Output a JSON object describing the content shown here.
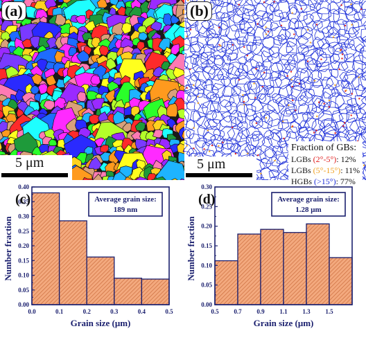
{
  "panels": {
    "a": {
      "letter": "(a)",
      "scalebar": "5 μm"
    },
    "b": {
      "letter": "(b)",
      "scalebar": "5 μm",
      "legend": {
        "title": "Fraction of GBs:",
        "rows": [
          {
            "name": "LGBs",
            "range": "(2°-5°)",
            "value": ": 12%",
            "color": "#e02020"
          },
          {
            "name": "LGBs",
            "range": "(5°-15°)",
            "value": ": 11%",
            "color": "#f0a020"
          },
          {
            "name": "HGBs",
            "range": "(>15°)",
            "value": ": 77%",
            "color": "#1d2fd8"
          }
        ]
      }
    }
  },
  "chart_data": [
    {
      "letter": "(c)",
      "type": "bar",
      "xlabel": "Grain size (μm)",
      "ylabel": "Number fraction",
      "bin_edges": [
        0.0,
        0.1,
        0.2,
        0.3,
        0.4,
        0.5
      ],
      "values": [
        0.38,
        0.285,
        0.162,
        0.09,
        0.087
      ],
      "xticks": [
        "0.0",
        "0.1",
        "0.2",
        "0.3",
        "0.4",
        "0.5"
      ],
      "ylim": [
        0.0,
        0.4
      ],
      "yticks": [
        "0.00",
        "0.05",
        "0.10",
        "0.15",
        "0.20",
        "0.25",
        "0.30",
        "0.35",
        "0.40"
      ],
      "annotation": [
        "Average grain size:",
        "189 nm"
      ],
      "bar_fill": "#f3a97e",
      "bar_hatch": "#c96a3a",
      "axis_color": "#1a1f6e"
    },
    {
      "letter": "(d)",
      "type": "bar",
      "xlabel": "Grain size (μm)",
      "ylabel": "Number fraction",
      "bin_edges": [
        0.5,
        0.7,
        0.9,
        1.1,
        1.3,
        1.5,
        1.7
      ],
      "values": [
        0.112,
        0.18,
        0.192,
        0.184,
        0.206,
        0.12
      ],
      "xticks": [
        "0.5",
        "0.7",
        "0.9",
        "1.1",
        "1.3",
        "1.5"
      ],
      "ylim": [
        0.0,
        0.3
      ],
      "yticks": [
        "0.00",
        "0.05",
        "0.10",
        "0.15",
        "0.20",
        "0.25",
        "0.30"
      ],
      "annotation": [
        "Average grain size:",
        "1.28 μm"
      ],
      "bar_fill": "#f3a97e",
      "bar_hatch": "#c96a3a",
      "axis_color": "#1a1f6e"
    }
  ],
  "grain_palette": [
    "#ff2a2a",
    "#1e6cff",
    "#2aff2a",
    "#ffff1e",
    "#ff2aff",
    "#1effff",
    "#ff9a1e",
    "#9a2aff",
    "#2a2aff",
    "#1e9a3a",
    "#ff7ab4",
    "#b4ff2a",
    "#1eb4ff",
    "#d9a07a",
    "#7a3aff",
    "#ffd21e"
  ]
}
